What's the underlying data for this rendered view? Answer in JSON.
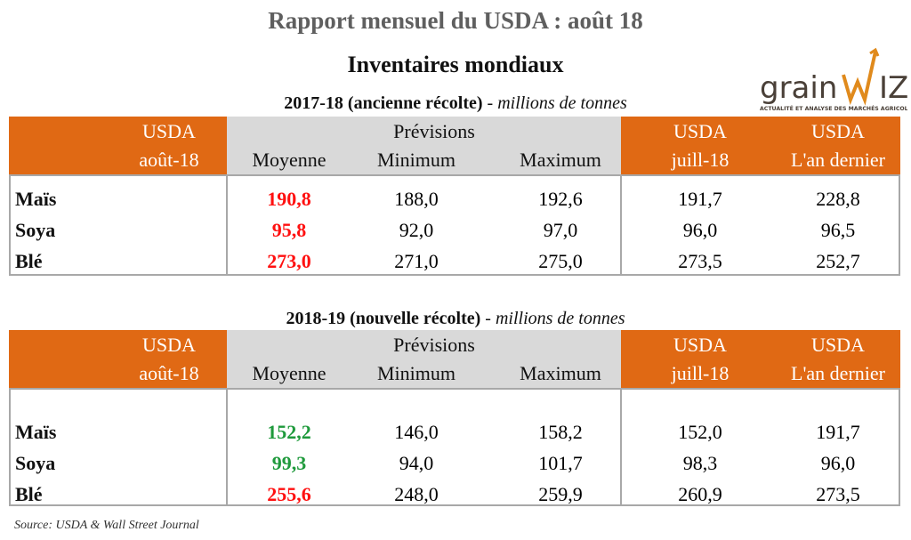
{
  "title": "Rapport mensuel du USDA : août 18",
  "subtitle": "Inventaires mondiaux",
  "logo": {
    "text": "grainwiz",
    "tagline": "ACTUALITÉ ET ANALYSE DES MARCHÉS AGRICOLES"
  },
  "colors": {
    "orange": "#e06914",
    "gray": "#d9d9d9",
    "red": "#ff1010",
    "green": "#1f9a3c"
  },
  "headers": {
    "usda": "USDA",
    "aout": "août-18",
    "previsions": "Prévisions",
    "moyenne": "Moyenne",
    "minimum": "Minimum",
    "maximum": "Maximum",
    "juill": "juill-18",
    "lan": "L'an dernier"
  },
  "tables": [
    {
      "section_bold": "2017-18 (ancienne récolte)",
      "section_sep": " - ",
      "section_italic": "millions de tonnes",
      "rows": [
        {
          "label": "Maïs",
          "usda": "190,8",
          "usda_color": "red",
          "min": "188,0",
          "max": "192,6",
          "juill": "191,7",
          "lan": "228,8"
        },
        {
          "label": "Soya",
          "usda": "95,8",
          "usda_color": "red",
          "min": "92,0",
          "max": "97,0",
          "juill": "96,0",
          "lan": "96,5"
        },
        {
          "label": "Blé",
          "usda": "273,0",
          "usda_color": "red",
          "min": "271,0",
          "max": "275,0",
          "juill": "273,5",
          "lan": "252,7"
        }
      ]
    },
    {
      "section_bold": "2018-19 (nouvelle récolte)",
      "section_sep": " - ",
      "section_italic": "millions de tonnes",
      "rows": [
        {
          "label": "Maïs",
          "usda": "152,2",
          "usda_color": "green",
          "min": "146,0",
          "max": "158,2",
          "juill": "152,0",
          "lan": "191,7"
        },
        {
          "label": "Soya",
          "usda": "99,3",
          "usda_color": "green",
          "min": "94,0",
          "max": "101,7",
          "juill": "98,3",
          "lan": "96,0"
        },
        {
          "label": "Blé",
          "usda": "255,6",
          "usda_color": "red",
          "min": "248,0",
          "max": "259,9",
          "juill": "260,9",
          "lan": "273,5"
        }
      ]
    }
  ],
  "source": "Source: USDA & Wall Street Journal"
}
